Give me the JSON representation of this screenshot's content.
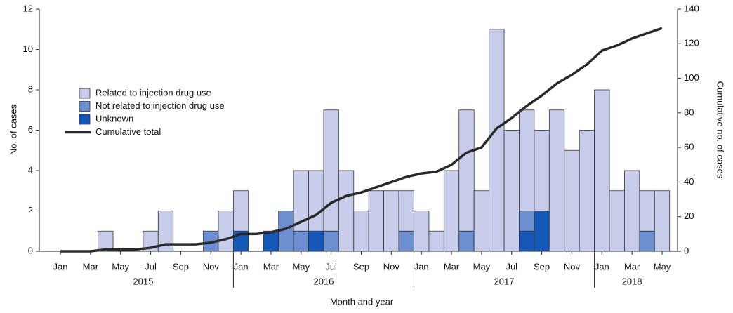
{
  "chart_data": {
    "type": "bar+line",
    "x_label": "Month and year",
    "y_label": "No. of cases",
    "y2_label": "Cumulative no. of cases",
    "categories": [
      "Jan",
      null,
      "Mar",
      null,
      "May",
      null,
      "Jul",
      null,
      "Sep",
      null,
      "Nov",
      null,
      "Jan",
      null,
      "Mar",
      null,
      "May",
      null,
      "Jul",
      null,
      "Sep",
      null,
      "Nov",
      null,
      "Jan",
      null,
      "Mar",
      null,
      "May",
      null,
      "Jul",
      null,
      "Sep",
      null,
      "Nov",
      null,
      "Jan",
      null,
      "Mar",
      null,
      "May"
    ],
    "years": [
      "2015",
      "2016",
      "2017",
      "2018"
    ],
    "ylim": [
      0,
      12
    ],
    "yticks": [
      0,
      2,
      4,
      6,
      8,
      10,
      12
    ],
    "y2lim": [
      0,
      140
    ],
    "y2ticks": [
      0,
      20,
      40,
      60,
      80,
      100,
      120,
      140
    ],
    "series": [
      {
        "name": "Related to injection drug use",
        "type": "bar",
        "color": "#c6cce9",
        "values": [
          0,
          0,
          0,
          1,
          0,
          0,
          1,
          2,
          0,
          0,
          0,
          2,
          2,
          0,
          0,
          0,
          3,
          3,
          6,
          4,
          2,
          3,
          3,
          2,
          2,
          1,
          4,
          6,
          3,
          11,
          6,
          5,
          4,
          7,
          5,
          6,
          8,
          3,
          4,
          2,
          3
        ]
      },
      {
        "name": "Not related to injection drug use",
        "type": "bar",
        "color": "#6d8fd2",
        "values": [
          0,
          0,
          0,
          0,
          0,
          0,
          0,
          0,
          0,
          0,
          1,
          0,
          0,
          0,
          0,
          2,
          1,
          0,
          1,
          0,
          0,
          0,
          0,
          1,
          0,
          0,
          0,
          1,
          0,
          0,
          0,
          1,
          0,
          0,
          0,
          0,
          0,
          0,
          0,
          1,
          0
        ]
      },
      {
        "name": "Unknown",
        "type": "bar",
        "color": "#1558b8",
        "values": [
          0,
          0,
          0,
          0,
          0,
          0,
          0,
          0,
          0,
          0,
          0,
          0,
          1,
          0,
          1,
          0,
          0,
          1,
          0,
          0,
          0,
          0,
          0,
          0,
          0,
          0,
          0,
          0,
          0,
          0,
          0,
          1,
          2,
          0,
          0,
          0,
          0,
          0,
          0,
          0,
          0
        ]
      },
      {
        "name": "Cumulative total",
        "type": "line",
        "axis": "y2",
        "color": "#2a2a2a",
        "values": [
          0,
          0,
          0,
          1,
          1,
          1,
          2,
          4,
          4,
          4,
          5,
          7,
          10,
          10,
          11,
          13,
          17,
          21,
          28,
          32,
          34,
          37,
          40,
          43,
          45,
          46,
          50,
          57,
          60,
          71,
          77,
          84,
          90,
          97,
          102,
          108,
          116,
          119,
          123,
          126,
          129
        ]
      }
    ]
  }
}
